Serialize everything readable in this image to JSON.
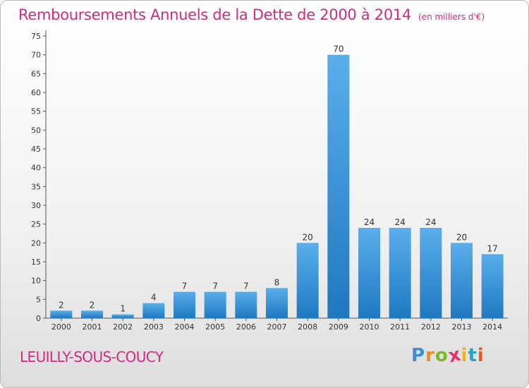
{
  "title": "Remboursements Annuels de la Dette de 2000 à 2014",
  "unit_note": "(en milliers d'€)",
  "place_name": "LEUILLY-SOUS-COUCY",
  "logo": {
    "text": "Proxiti",
    "letter_colors": [
      "#3a8fd8",
      "#f08a1c",
      "#7ab929",
      "#e8306b",
      "#f2b510",
      "#2aa3b8",
      "#e85820"
    ]
  },
  "colors": {
    "bar_light": "#5aaeea",
    "bar_dark": "#1f78c0",
    "title": "#d42a80"
  },
  "chart_data": {
    "type": "bar",
    "categories": [
      "2000",
      "2001",
      "2002",
      "2003",
      "2004",
      "2005",
      "2006",
      "2007",
      "2008",
      "2009",
      "2010",
      "2011",
      "2012",
      "2013",
      "2014"
    ],
    "values": [
      2,
      2,
      1,
      4,
      7,
      7,
      7,
      8,
      20,
      70,
      24,
      24,
      24,
      20,
      17
    ],
    "data_labels": [
      "2",
      "2",
      "1",
      "4",
      "7",
      "7",
      "7",
      "8",
      "20",
      "70",
      "24",
      "24",
      "24",
      "20",
      "17"
    ],
    "ylim": [
      0,
      75
    ],
    "yticks": [
      0,
      5,
      10,
      15,
      20,
      25,
      30,
      35,
      40,
      45,
      50,
      55,
      60,
      65,
      70,
      75
    ],
    "grid": false,
    "legend": "none"
  }
}
